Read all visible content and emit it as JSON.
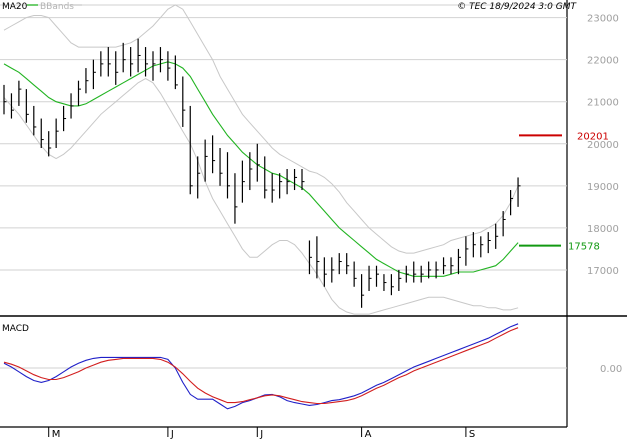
{
  "header": {
    "indicator_ma": "MA20",
    "indicator_bb": "BBands",
    "copyright": "© TEC 18/9/2024 3:0 GMT"
  },
  "colors": {
    "ma20": "#22b422",
    "bbands": "#c8c8c8",
    "bars": "#000000",
    "macd_line": "#2020c8",
    "signal_line": "#d21e1e",
    "resistance": "#cc0000",
    "support": "#119911",
    "grid": "#d2d2d2",
    "axis_text": "#a0a0a0"
  },
  "chart_data": [
    {
      "type": "ohlc",
      "title": "",
      "x_tick_labels": [
        "M",
        "J",
        "J",
        "A",
        "S"
      ],
      "x_tick_index": [
        6,
        22,
        34,
        48,
        62
      ],
      "y_tick_labels": [
        "17000",
        "18000",
        "19000",
        "20000",
        "21000",
        "22000",
        "23000"
      ],
      "ylim": [
        16000,
        23300
      ],
      "grid": true,
      "bar_count": 70,
      "bars_approx": [
        {
          "i": 0,
          "h": 21400,
          "l": 20700,
          "c": 21000
        },
        {
          "i": 1,
          "h": 21200,
          "l": 20600,
          "c": 20800
        },
        {
          "i": 2,
          "h": 21500,
          "l": 20900,
          "c": 21300
        },
        {
          "i": 3,
          "h": 21300,
          "l": 20500,
          "c": 20700
        },
        {
          "i": 4,
          "h": 20900,
          "l": 20200,
          "c": 20400
        },
        {
          "i": 5,
          "h": 20600,
          "l": 19900,
          "c": 20100
        },
        {
          "i": 6,
          "h": 20300,
          "l": 19700,
          "c": 19900
        },
        {
          "i": 7,
          "h": 20600,
          "l": 19900,
          "c": 20300
        },
        {
          "i": 8,
          "h": 20900,
          "l": 20300,
          "c": 20600
        },
        {
          "i": 9,
          "h": 21200,
          "l": 20600,
          "c": 20900
        },
        {
          "i": 10,
          "h": 21500,
          "l": 20900,
          "c": 21300
        },
        {
          "i": 11,
          "h": 21800,
          "l": 21200,
          "c": 21500
        },
        {
          "i": 12,
          "h": 22000,
          "l": 21300,
          "c": 21700
        },
        {
          "i": 13,
          "h": 22200,
          "l": 21600,
          "c": 21900
        },
        {
          "i": 14,
          "h": 22300,
          "l": 21600,
          "c": 21900
        },
        {
          "i": 15,
          "h": 22200,
          "l": 21400,
          "c": 21700
        },
        {
          "i": 16,
          "h": 22400,
          "l": 21700,
          "c": 22000
        },
        {
          "i": 17,
          "h": 22300,
          "l": 21600,
          "c": 21900
        },
        {
          "i": 18,
          "h": 22500,
          "l": 21700,
          "c": 22100
        },
        {
          "i": 19,
          "h": 22300,
          "l": 21600,
          "c": 21900
        },
        {
          "i": 20,
          "h": 22200,
          "l": 21500,
          "c": 21900
        },
        {
          "i": 21,
          "h": 22300,
          "l": 21700,
          "c": 22000
        },
        {
          "i": 22,
          "h": 22200,
          "l": 21500,
          "c": 21800
        },
        {
          "i": 23,
          "h": 22100,
          "l": 21300,
          "c": 21400
        },
        {
          "i": 24,
          "h": 21600,
          "l": 20400,
          "c": 20800
        },
        {
          "i": 25,
          "h": 20900,
          "l": 18800,
          "c": 19000
        },
        {
          "i": 26,
          "h": 19700,
          "l": 18700,
          "c": 19300
        },
        {
          "i": 27,
          "h": 20100,
          "l": 19100,
          "c": 19700
        },
        {
          "i": 28,
          "h": 20200,
          "l": 19300,
          "c": 19600
        },
        {
          "i": 29,
          "h": 19900,
          "l": 19000,
          "c": 19300
        },
        {
          "i": 30,
          "h": 19800,
          "l": 18700,
          "c": 19000
        },
        {
          "i": 31,
          "h": 19300,
          "l": 18100,
          "c": 18500
        },
        {
          "i": 32,
          "h": 19600,
          "l": 18600,
          "c": 19100
        },
        {
          "i": 33,
          "h": 19800,
          "l": 18900,
          "c": 19400
        },
        {
          "i": 34,
          "h": 20000,
          "l": 19100,
          "c": 19500
        },
        {
          "i": 35,
          "h": 19700,
          "l": 18700,
          "c": 18900
        },
        {
          "i": 36,
          "h": 19300,
          "l": 18600,
          "c": 18900
        },
        {
          "i": 37,
          "h": 19300,
          "l": 18700,
          "c": 19100
        },
        {
          "i": 38,
          "h": 19400,
          "l": 18800,
          "c": 19100
        },
        {
          "i": 39,
          "h": 19400,
          "l": 18900,
          "c": 19200
        },
        {
          "i": 40,
          "h": 19400,
          "l": 18900,
          "c": 19100
        },
        {
          "i": 41,
          "h": 17700,
          "l": 16900,
          "c": 17300
        },
        {
          "i": 42,
          "h": 17800,
          "l": 16800,
          "c": 17200
        },
        {
          "i": 43,
          "h": 17300,
          "l": 16600,
          "c": 16900
        },
        {
          "i": 44,
          "h": 17300,
          "l": 16700,
          "c": 17000
        },
        {
          "i": 45,
          "h": 17400,
          "l": 16900,
          "c": 17200
        },
        {
          "i": 46,
          "h": 17400,
          "l": 16900,
          "c": 17100
        },
        {
          "i": 47,
          "h": 17200,
          "l": 16600,
          "c": 16800
        },
        {
          "i": 48,
          "h": 16900,
          "l": 16100,
          "c": 16400
        },
        {
          "i": 49,
          "h": 17100,
          "l": 16500,
          "c": 16800
        },
        {
          "i": 50,
          "h": 17100,
          "l": 16600,
          "c": 16900
        },
        {
          "i": 51,
          "h": 16900,
          "l": 16500,
          "c": 16700
        },
        {
          "i": 52,
          "h": 16900,
          "l": 16400,
          "c": 16600
        },
        {
          "i": 53,
          "h": 17000,
          "l": 16500,
          "c": 16800
        },
        {
          "i": 54,
          "h": 17100,
          "l": 16700,
          "c": 16900
        },
        {
          "i": 55,
          "h": 17200,
          "l": 16700,
          "c": 16900
        },
        {
          "i": 56,
          "h": 17100,
          "l": 16700,
          "c": 16900
        },
        {
          "i": 57,
          "h": 17200,
          "l": 16800,
          "c": 17000
        },
        {
          "i": 58,
          "h": 17200,
          "l": 16800,
          "c": 17000
        },
        {
          "i": 59,
          "h": 17300,
          "l": 16900,
          "c": 17100
        },
        {
          "i": 60,
          "h": 17300,
          "l": 16900,
          "c": 17100
        },
        {
          "i": 61,
          "h": 17500,
          "l": 16900,
          "c": 17300
        },
        {
          "i": 62,
          "h": 17800,
          "l": 17100,
          "c": 17500
        },
        {
          "i": 63,
          "h": 17900,
          "l": 17300,
          "c": 17600
        },
        {
          "i": 64,
          "h": 17800,
          "l": 17300,
          "c": 17600
        },
        {
          "i": 65,
          "h": 17900,
          "l": 17400,
          "c": 17700
        },
        {
          "i": 66,
          "h": 18100,
          "l": 17500,
          "c": 17800
        },
        {
          "i": 67,
          "h": 18400,
          "l": 17800,
          "c": 18200
        },
        {
          "i": 68,
          "h": 18900,
          "l": 18300,
          "c": 18700
        },
        {
          "i": 69,
          "h": 19200,
          "l": 18500,
          "c": 19000
        }
      ],
      "ma20_approx": [
        21900,
        21800,
        21700,
        21550,
        21400,
        21250,
        21100,
        21000,
        20950,
        20900,
        20900,
        20950,
        21050,
        21150,
        21250,
        21350,
        21450,
        21550,
        21650,
        21750,
        21850,
        21900,
        21950,
        21900,
        21800,
        21600,
        21300,
        21000,
        20700,
        20450,
        20200,
        20000,
        19800,
        19650,
        19500,
        19400,
        19300,
        19250,
        19150,
        19050,
        18950,
        18800,
        18600,
        18400,
        18200,
        18000,
        17850,
        17700,
        17550,
        17400,
        17250,
        17150,
        17050,
        16950,
        16900,
        16850,
        16850,
        16850,
        16850,
        16850,
        16900,
        16950,
        16950,
        16950,
        17000,
        17050,
        17100,
        17250,
        17450,
        17650
      ],
      "bb_upper_approx": [
        22700,
        22800,
        22900,
        23000,
        23050,
        23050,
        23000,
        22800,
        22600,
        22400,
        22300,
        22300,
        22300,
        22300,
        22300,
        22300,
        22350,
        22400,
        22500,
        22650,
        22800,
        23000,
        23200,
        23300,
        23200,
        22900,
        22600,
        22300,
        22000,
        21600,
        21300,
        21000,
        20700,
        20500,
        20300,
        20100,
        19900,
        19750,
        19650,
        19550,
        19450,
        19350,
        19300,
        19200,
        19050,
        18850,
        18600,
        18400,
        18200,
        18000,
        17850,
        17700,
        17550,
        17450,
        17400,
        17400,
        17450,
        17500,
        17550,
        17600,
        17700,
        17750,
        17800,
        17850,
        17900,
        18000,
        18100,
        18300,
        18600,
        19000
      ],
      "bb_lower_approx": [
        21100,
        20900,
        20700,
        20450,
        20200,
        19950,
        19750,
        19650,
        19750,
        19900,
        20100,
        20300,
        20500,
        20700,
        20850,
        21000,
        21150,
        21300,
        21450,
        21550,
        21450,
        21200,
        20900,
        20600,
        20300,
        20000,
        19600,
        19100,
        18700,
        18400,
        18100,
        17800,
        17500,
        17300,
        17300,
        17450,
        17600,
        17700,
        17700,
        17600,
        17400,
        17150,
        16900,
        16600,
        16300,
        16100,
        16000,
        15950,
        15950,
        15950,
        16000,
        16050,
        16100,
        16150,
        16200,
        16250,
        16300,
        16350,
        16350,
        16350,
        16300,
        16250,
        16200,
        16150,
        16150,
        16100,
        16100,
        16050,
        16050,
        16100
      ],
      "resistance": {
        "label": "20201",
        "value": 20201
      },
      "support": {
        "label": "17578",
        "value": 17578
      }
    },
    {
      "type": "line",
      "title": "MACD",
      "y_tick_labels": [
        "0.00"
      ],
      "ylim": [
        -1,
        1
      ],
      "series": [
        {
          "values": [
            0.1,
            0.02,
            -0.08,
            -0.18,
            -0.26,
            -0.3,
            -0.26,
            -0.18,
            -0.08,
            0.02,
            0.1,
            0.16,
            0.2,
            0.22,
            0.22,
            0.22,
            0.22,
            0.22,
            0.22,
            0.22,
            0.22,
            0.22,
            0.18,
            0.0,
            -0.3,
            -0.55,
            -0.65,
            -0.65,
            -0.65,
            -0.75,
            -0.85,
            -0.8,
            -0.72,
            -0.68,
            -0.62,
            -0.56,
            -0.55,
            -0.6,
            -0.68,
            -0.72,
            -0.75,
            -0.78,
            -0.76,
            -0.72,
            -0.68,
            -0.66,
            -0.62,
            -0.58,
            -0.52,
            -0.44,
            -0.36,
            -0.3,
            -0.22,
            -0.14,
            -0.06,
            0.02,
            0.08,
            0.14,
            0.2,
            0.26,
            0.32,
            0.38,
            0.44,
            0.5,
            0.56,
            0.62,
            0.7,
            0.78,
            0.86,
            0.92
          ]
        },
        {
          "values": [
            0.12,
            0.08,
            0.02,
            -0.06,
            -0.14,
            -0.2,
            -0.24,
            -0.24,
            -0.2,
            -0.14,
            -0.08,
            0.0,
            0.06,
            0.12,
            0.16,
            0.18,
            0.2,
            0.2,
            0.2,
            0.2,
            0.2,
            0.18,
            0.12,
            0.02,
            -0.12,
            -0.28,
            -0.42,
            -0.52,
            -0.6,
            -0.66,
            -0.72,
            -0.72,
            -0.7,
            -0.66,
            -0.62,
            -0.58,
            -0.56,
            -0.58,
            -0.62,
            -0.66,
            -0.7,
            -0.72,
            -0.74,
            -0.74,
            -0.72,
            -0.7,
            -0.68,
            -0.64,
            -0.58,
            -0.5,
            -0.42,
            -0.36,
            -0.28,
            -0.2,
            -0.14,
            -0.06,
            0.0,
            0.06,
            0.12,
            0.18,
            0.24,
            0.3,
            0.36,
            0.42,
            0.48,
            0.54,
            0.62,
            0.7,
            0.78,
            0.84
          ]
        }
      ]
    }
  ]
}
